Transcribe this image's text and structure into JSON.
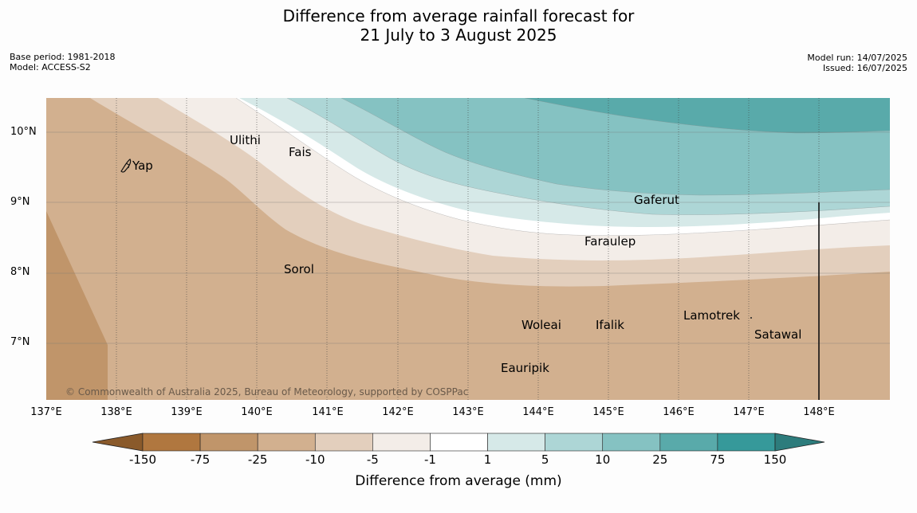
{
  "title": {
    "line1": "Difference from average rainfall forecast for",
    "line2": "21 July to 3 August 2025"
  },
  "meta": {
    "base_period": "Base period: 1981-2018",
    "model": "Model: ACCESS-S2",
    "model_run": "Model run: 14/07/2025",
    "issued": "Issued: 16/07/2025"
  },
  "copyright": "© Commonwealth of Australia 2025, Bureau of Meteorology, supported by COSPPac",
  "latitude_labels": [
    "10°N",
    "9°N",
    "8°N",
    "7°N"
  ],
  "longitude_labels": [
    "137°E",
    "138°E",
    "139°E",
    "140°E",
    "141°E",
    "142°E",
    "143°E",
    "144°E",
    "145°E",
    "146°E",
    "147°E",
    "148°E"
  ],
  "places": [
    {
      "id": "yap",
      "name": "Yap"
    },
    {
      "id": "ulithi",
      "name": "Ulithi"
    },
    {
      "id": "fais",
      "name": "Fais"
    },
    {
      "id": "gaferut",
      "name": "Gaferut"
    },
    {
      "id": "faraulep",
      "name": "Faraulep"
    },
    {
      "id": "sorol",
      "name": "Sorol"
    },
    {
      "id": "woleai",
      "name": "Woleai"
    },
    {
      "id": "ifalik",
      "name": "Ifalik"
    },
    {
      "id": "lamotrek",
      "name": "Lamotrek"
    },
    {
      "id": "satawal",
      "name": "Satawal"
    },
    {
      "id": "eauripik",
      "name": "Eauripik"
    }
  ],
  "colorbar": {
    "label": "Difference from average (mm)",
    "ticks": [
      "-150",
      "-75",
      "-25",
      "-10",
      "-5",
      "-1",
      "1",
      "5",
      "10",
      "25",
      "75",
      "150"
    ],
    "colors": {
      "under": "#8a5a2b",
      "bins": [
        "#b0773f",
        "#c0956a",
        "#d2b08f",
        "#e3cfbd",
        "#f3ede8",
        "#ffffff",
        "#d6e9e8",
        "#add6d6",
        "#85c2c2",
        "#59aaaa",
        "#36999a"
      ],
      "over": "#2d7c7c"
    }
  }
}
